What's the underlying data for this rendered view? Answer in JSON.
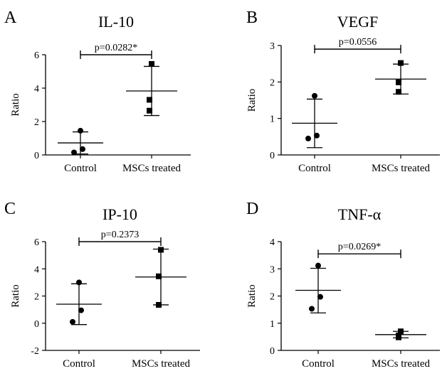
{
  "chart_data": [
    {
      "type": "scatter",
      "panel": "A",
      "title": "IL-10",
      "ylabel": "Ratio",
      "xlabel": "",
      "ylim": [
        0,
        6
      ],
      "yticks": [
        0,
        2,
        4,
        6
      ],
      "categories": [
        "Control",
        "MSCs treated"
      ],
      "series": [
        {
          "name": "Control",
          "marker": "circle",
          "points": [
            1.45,
            0.35,
            0.15
          ],
          "mean": 0.72,
          "sd_upper": 1.38,
          "sd_lower": 0.06
        },
        {
          "name": "MSCs treated",
          "marker": "square",
          "points": [
            5.45,
            3.3,
            2.65
          ],
          "mean": 3.83,
          "sd_upper": 5.3,
          "sd_lower": 2.36
        }
      ],
      "comparison": {
        "label": "p=0.0282*",
        "y": 6.0
      }
    },
    {
      "type": "scatter",
      "panel": "B",
      "title": "VEGF",
      "ylabel": "Ratio",
      "xlabel": "",
      "ylim": [
        0,
        3
      ],
      "yticks": [
        0,
        1,
        2,
        3
      ],
      "categories": [
        "Control",
        "MSCs treated"
      ],
      "series": [
        {
          "name": "Control",
          "marker": "circle",
          "points": [
            1.62,
            0.53,
            0.45
          ],
          "mean": 0.87,
          "sd_upper": 1.53,
          "sd_lower": 0.2
        },
        {
          "name": "MSCs treated",
          "marker": "square",
          "points": [
            2.52,
            1.99,
            1.73
          ],
          "mean": 2.08,
          "sd_upper": 2.49,
          "sd_lower": 1.67
        }
      ],
      "comparison": {
        "label": "p=0.0556",
        "y": 2.9
      }
    },
    {
      "type": "scatter",
      "panel": "C",
      "title": "IP-10",
      "ylabel": "Ratio",
      "xlabel": "",
      "ylim": [
        -2,
        6
      ],
      "yticks": [
        -2,
        0,
        2,
        4,
        6
      ],
      "categories": [
        "Control",
        "MSCs treated"
      ],
      "series": [
        {
          "name": "Control",
          "marker": "circle",
          "points": [
            3.0,
            0.95,
            0.1
          ],
          "mean": 1.4,
          "sd_upper": 2.9,
          "sd_lower": -0.1
        },
        {
          "name": "MSCs treated",
          "marker": "square",
          "points": [
            5.4,
            3.45,
            1.35
          ],
          "mean": 3.4,
          "sd_upper": 5.45,
          "sd_lower": 1.35
        }
      ],
      "comparison": {
        "label": "p=0.2373",
        "y": 6.0
      }
    },
    {
      "type": "scatter",
      "panel": "D",
      "title": "TNF-α",
      "ylabel": "Ratio",
      "xlabel": "",
      "ylim": [
        0,
        4
      ],
      "yticks": [
        0,
        1,
        2,
        3,
        4
      ],
      "categories": [
        "Control",
        "MSCs treated"
      ],
      "series": [
        {
          "name": "Control",
          "marker": "circle",
          "points": [
            3.12,
            1.97,
            1.53
          ],
          "mean": 2.21,
          "sd_upper": 3.02,
          "sd_lower": 1.38
        },
        {
          "name": "MSCs treated",
          "marker": "square",
          "points": [
            0.7,
            0.55,
            0.48
          ],
          "mean": 0.58,
          "sd_upper": 0.7,
          "sd_lower": 0.46
        }
      ],
      "comparison": {
        "label": "p=0.0269*",
        "y": 3.55
      }
    }
  ]
}
